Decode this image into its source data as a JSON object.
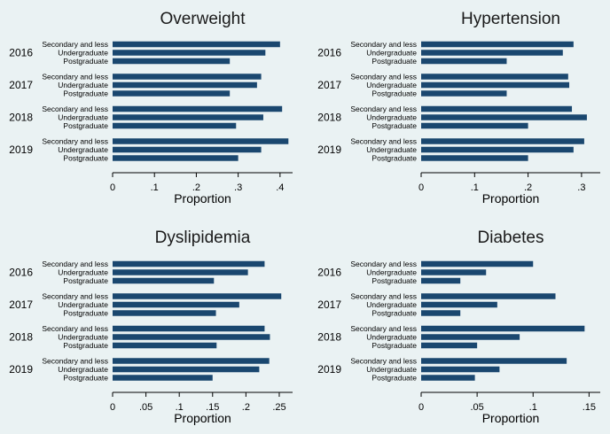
{
  "chart_data": [
    {
      "type": "bar",
      "title": "Overweight",
      "xlabel": "Proportion",
      "xlim": [
        0,
        0.43
      ],
      "ticks": [
        0,
        0.1,
        0.2,
        0.3,
        0.4
      ],
      "tick_labels": [
        "0",
        ".1",
        ".2",
        ".3",
        ".4"
      ],
      "groups": [
        "2016",
        "2017",
        "2018",
        "2019"
      ],
      "categories": [
        "Secondary and less",
        "Undergraduate",
        "Postgraduate"
      ],
      "values": [
        [
          0.4,
          0.365,
          0.28
        ],
        [
          0.355,
          0.345,
          0.28
        ],
        [
          0.405,
          0.36,
          0.295
        ],
        [
          0.42,
          0.355,
          0.3
        ]
      ]
    },
    {
      "type": "bar",
      "title": "Hypertension",
      "xlabel": "Proportion",
      "xlim": [
        0,
        0.335
      ],
      "ticks": [
        0,
        0.1,
        0.2,
        0.3
      ],
      "tick_labels": [
        "0",
        ".1",
        ".2",
        ".3"
      ],
      "groups": [
        "2016",
        "2017",
        "2018",
        "2019"
      ],
      "categories": [
        "Secondary and less",
        "Undergraduate",
        "Postgraduate"
      ],
      "values": [
        [
          0.285,
          0.265,
          0.16
        ],
        [
          0.275,
          0.277,
          0.16
        ],
        [
          0.282,
          0.31,
          0.2
        ],
        [
          0.305,
          0.285,
          0.2
        ]
      ]
    },
    {
      "type": "bar",
      "title": "Dyslipidemia",
      "xlabel": "Proportion",
      "xlim": [
        0,
        0.27
      ],
      "ticks": [
        0,
        0.05,
        0.1,
        0.15,
        0.2,
        0.25
      ],
      "tick_labels": [
        "0",
        ".05",
        ".1",
        ".15",
        ".2",
        ".25"
      ],
      "groups": [
        "2016",
        "2017",
        "2018",
        "2019"
      ],
      "categories": [
        "Secondary and less",
        "Undergraduate",
        "Postgraduate"
      ],
      "values": [
        [
          0.228,
          0.203,
          0.152
        ],
        [
          0.253,
          0.19,
          0.155
        ],
        [
          0.228,
          0.236,
          0.156
        ],
        [
          0.235,
          0.22,
          0.15
        ]
      ]
    },
    {
      "type": "bar",
      "title": "Diabetes",
      "xlabel": "Proportion",
      "xlim": [
        0,
        0.16
      ],
      "ticks": [
        0,
        0.05,
        0.1,
        0.15
      ],
      "tick_labels": [
        "0",
        ".05",
        ".1",
        ".15"
      ],
      "groups": [
        "2016",
        "2017",
        "2018",
        "2019"
      ],
      "categories": [
        "Secondary and less",
        "Undergraduate",
        "Postgraduate"
      ],
      "values": [
        [
          0.1,
          0.058,
          0.035
        ],
        [
          0.12,
          0.068,
          0.035
        ],
        [
          0.146,
          0.088,
          0.05
        ],
        [
          0.13,
          0.07,
          0.048
        ]
      ]
    }
  ],
  "colors": {
    "bar": "#1a476f",
    "background": "#eaf2f3",
    "text": "#000000"
  }
}
